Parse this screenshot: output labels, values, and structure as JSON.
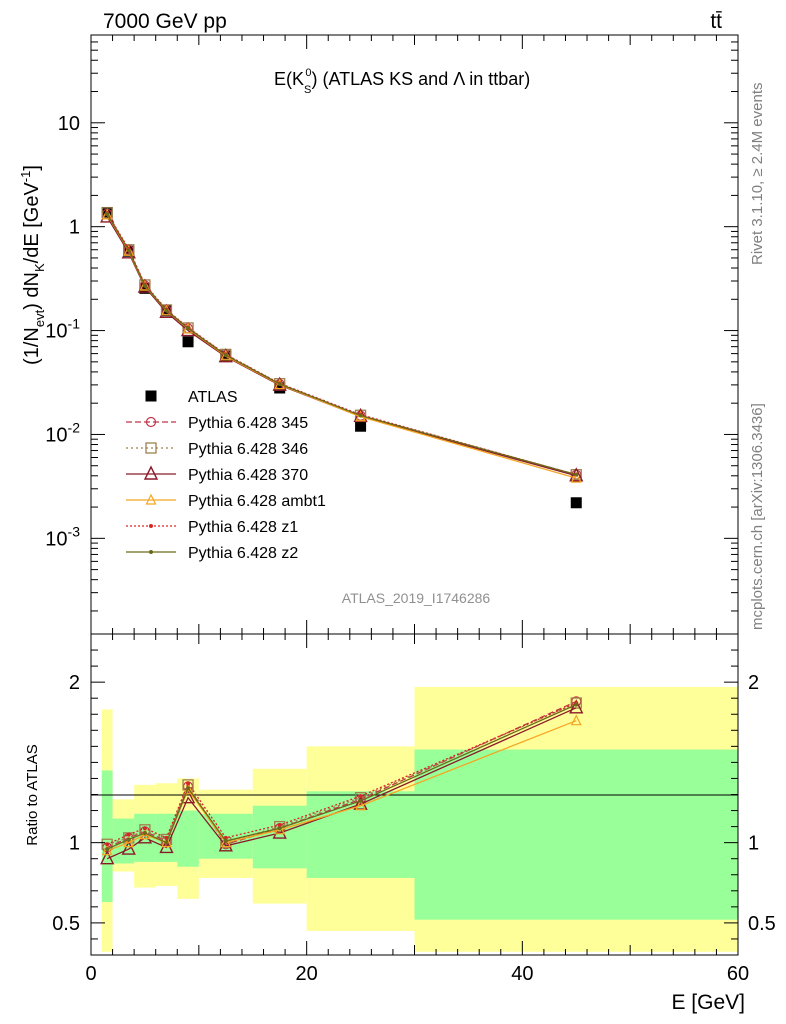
{
  "header": {
    "energy_label": "7000 GeV pp",
    "process_label": "tt̄",
    "rivet_label": "Rivet 3.1.10, ≥ 2.4M events",
    "mcplots_label": "mcplots.cern.ch [arXiv:1306.3436]",
    "analysis_id": "ATLAS_2019_I1746286"
  },
  "colors": {
    "data": "#000000",
    "p345": "#c0364a",
    "p346": "#a0804d",
    "p370": "#8b1a2a",
    "ambt1": "#f5a623",
    "z1": "#d62728",
    "z2": "#6b6b1a",
    "band_inner": "#99ff99",
    "band_outer": "#ffff99"
  },
  "chart_data": [
    {
      "type": "scatter",
      "panel": "main",
      "title_parts": {
        "main": "E(K",
        "sub": "S",
        "sup": "0",
        "rest": ") (ATLAS KS and Λ in ttbar)"
      },
      "ylabel_parts": {
        "a": "(1/N",
        "a_sub": "evt",
        "b": ") dN",
        "b_sub": "K",
        "c": "/dE [GeV",
        "c_sup": "-1",
        "d": "]"
      },
      "xlabel": "E [GeV]",
      "ylog": true,
      "ylim": [
        0.00012,
        70
      ],
      "xlim": [
        0,
        60
      ],
      "x": [
        1.5,
        3.5,
        5.0,
        7.0,
        9.0,
        12.5,
        17.5,
        25.0,
        45.0
      ],
      "ytick_labels": [
        "10^-3",
        "10^-2",
        "10^-1",
        "1",
        "10"
      ],
      "ytick_values": [
        0.001,
        0.01,
        0.1,
        1,
        10
      ],
      "legend_position": "left-middle",
      "series": [
        {
          "name": "ATLAS",
          "key": "data",
          "marker": "square",
          "dash": "none",
          "values": [
            1.37,
            0.58,
            0.255,
            0.155,
            0.078,
            0.057,
            0.028,
            0.012,
            0.0022
          ]
        },
        {
          "name": "Pythia 6.428 345",
          "key": "p345",
          "marker": "circle",
          "dash": "6,3",
          "values": [
            1.33,
            0.6,
            0.272,
            0.157,
            0.105,
            0.058,
            0.0305,
            0.0152,
            0.0041
          ]
        },
        {
          "name": "Pythia 6.428 346",
          "key": "p346",
          "marker": "square-open",
          "dash": "2,3",
          "values": [
            1.36,
            0.6,
            0.275,
            0.158,
            0.106,
            0.059,
            0.0308,
            0.0153,
            0.0041
          ]
        },
        {
          "name": "Pythia 6.428 370",
          "key": "p370",
          "marker": "triangle",
          "dash": "none",
          "values": [
            1.24,
            0.56,
            0.262,
            0.15,
            0.1,
            0.056,
            0.0298,
            0.0149,
            0.004
          ]
        },
        {
          "name": "Pythia 6.428 ambt1",
          "key": "ambt1",
          "marker": "triangle-small",
          "dash": "none",
          "values": [
            1.3,
            0.58,
            0.268,
            0.155,
            0.104,
            0.057,
            0.0302,
            0.0148,
            0.0038
          ]
        },
        {
          "name": "Pythia 6.428 z1",
          "key": "z1",
          "marker": "dot",
          "dash": "2,2",
          "values": [
            1.35,
            0.61,
            0.278,
            0.159,
            0.107,
            0.059,
            0.031,
            0.0155,
            0.0041
          ]
        },
        {
          "name": "Pythia 6.428 z2",
          "key": "z2",
          "marker": "dot",
          "dash": "none",
          "values": [
            1.32,
            0.59,
            0.27,
            0.156,
            0.105,
            0.058,
            0.0306,
            0.0152,
            0.0041
          ]
        }
      ]
    },
    {
      "type": "line",
      "panel": "ratio",
      "ylabel": "Ratio to ATLAS",
      "xlabel": "E [GeV]",
      "xlim": [
        0,
        60
      ],
      "ylim": [
        0.3,
        2.3
      ],
      "xtick_labels": [
        "0",
        "20",
        "40",
        "60"
      ],
      "xtick_values": [
        0,
        20,
        40,
        60
      ],
      "ytick_labels": [
        "0.5",
        "1",
        "2"
      ],
      "ytick_values": [
        0.5,
        1,
        2
      ],
      "bins": [
        [
          1,
          2
        ],
        [
          2,
          4
        ],
        [
          4,
          6
        ],
        [
          6,
          8
        ],
        [
          8,
          10
        ],
        [
          10,
          15
        ],
        [
          15,
          20
        ],
        [
          20,
          30
        ],
        [
          30,
          60
        ]
      ],
      "band_inner": [
        [
          0.63,
          1.45
        ],
        [
          0.87,
          1.15
        ],
        [
          0.88,
          1.18
        ],
        [
          0.88,
          1.18
        ],
        [
          0.85,
          1.2
        ],
        [
          0.9,
          1.18
        ],
        [
          0.84,
          1.23
        ],
        [
          0.78,
          1.32
        ],
        [
          0.52,
          1.58
        ]
      ],
      "band_outer": [
        [
          0.32,
          1.83
        ],
        [
          0.82,
          1.27
        ],
        [
          0.72,
          1.36
        ],
        [
          0.73,
          1.37
        ],
        [
          0.65,
          1.4
        ],
        [
          0.78,
          1.33
        ],
        [
          0.62,
          1.46
        ],
        [
          0.45,
          1.6
        ],
        [
          0.32,
          1.97
        ]
      ],
      "x": [
        1.5,
        3.5,
        5.0,
        7.0,
        9.0,
        12.5,
        17.5,
        25.0,
        45.0
      ],
      "series": [
        {
          "name": "Pythia 6.428 345",
          "key": "p345",
          "marker": "circle",
          "dash": "6,3",
          "values": [
            0.97,
            1.03,
            1.07,
            1.01,
            1.35,
            0.99,
            1.09,
            1.27,
            1.88
          ]
        },
        {
          "name": "Pythia 6.428 346",
          "key": "p346",
          "marker": "square-open",
          "dash": "2,3",
          "values": [
            0.99,
            1.03,
            1.08,
            1.02,
            1.36,
            1.0,
            1.1,
            1.28,
            1.87
          ]
        },
        {
          "name": "Pythia 6.428 370",
          "key": "p370",
          "marker": "triangle",
          "dash": "none",
          "values": [
            0.9,
            0.96,
            1.03,
            0.97,
            1.28,
            0.98,
            1.06,
            1.24,
            1.84
          ]
        },
        {
          "name": "Pythia 6.428 ambt1",
          "key": "ambt1",
          "marker": "triangle-small",
          "dash": "none",
          "values": [
            0.95,
            1.0,
            1.05,
            1.0,
            1.33,
            1.0,
            1.08,
            1.23,
            1.76
          ]
        },
        {
          "name": "Pythia 6.428 z1",
          "key": "z1",
          "marker": "dot",
          "dash": "2,2",
          "values": [
            0.99,
            1.05,
            1.09,
            1.03,
            1.37,
            1.03,
            1.11,
            1.29,
            1.87
          ]
        },
        {
          "name": "Pythia 6.428 z2",
          "key": "z2",
          "marker": "dot",
          "dash": "none",
          "values": [
            0.96,
            1.02,
            1.06,
            1.0,
            1.34,
            1.01,
            1.09,
            1.26,
            1.86
          ]
        }
      ]
    }
  ]
}
